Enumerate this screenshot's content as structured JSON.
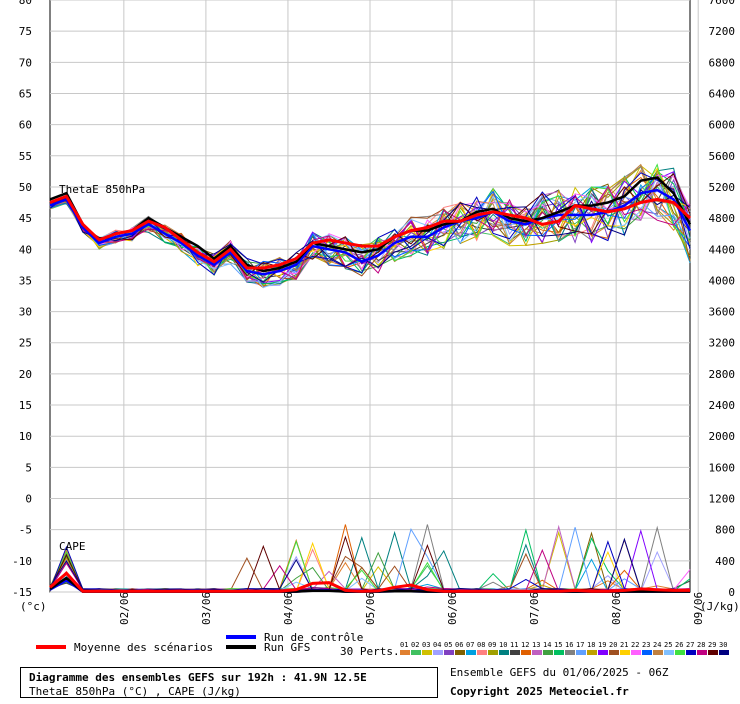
{
  "chart_data": {
    "type": "line",
    "title": "Diagramme des ensembles GEFS sur 192h : 41.9N 12.5E",
    "subtitle": "ThetaE 850hPa (°C) , CAPE (J/kg)",
    "run_info": "Ensemble GEFS du 01/06/2025 - 06Z",
    "copyright": "Copyright 2025 Meteociel.fr",
    "left_axis_unit": "(°c)",
    "right_axis_unit": "(J/kg)",
    "y_left_ticks": [
      "80",
      "75",
      "70",
      "65",
      "60",
      "55",
      "50",
      "45",
      "40",
      "35",
      "30",
      "25",
      "20",
      "15",
      "10",
      "5",
      "0",
      "-5",
      "-10",
      "-15"
    ],
    "y_right_ticks": [
      "7600",
      "7200",
      "6800",
      "6400",
      "6000",
      "5600",
      "5200",
      "4800",
      "4400",
      "4000",
      "3600",
      "3200",
      "2800",
      "2400",
      "2000",
      "1600",
      "1200",
      "800",
      "400",
      "0"
    ],
    "ylim_left": [
      -15,
      80
    ],
    "ylim_right": [
      0,
      7600
    ],
    "x_ticks": [
      "02/06",
      "03/06",
      "04/06",
      "05/06",
      "06/06",
      "07/06",
      "08/06",
      "09/06"
    ],
    "grid": true,
    "panel_labels": [
      "ThetaE 850hPa",
      "CAPE"
    ],
    "legend": {
      "mean": "Moyenne des scénarios",
      "control": "Run de contrôle",
      "gfs": "Run GFS",
      "perts": "30 Perts.",
      "pert_numbers": [
        "01",
        "02",
        "03",
        "04",
        "05",
        "06",
        "07",
        "08",
        "09",
        "10",
        "11",
        "12",
        "13",
        "14",
        "15",
        "16",
        "17",
        "18",
        "19",
        "20",
        "21",
        "22",
        "23",
        "24",
        "25",
        "26",
        "27",
        "28",
        "29",
        "30"
      ],
      "pert_colors": [
        "#e08030",
        "#40c060",
        "#d0c000",
        "#a0a0ff",
        "#8040c0",
        "#806000",
        "#00a0e0",
        "#ff8080",
        "#a0a000",
        "#008080",
        "#404040",
        "#e06000",
        "#c060c0",
        "#40a040",
        "#00c060",
        "#808080",
        "#60a0ff",
        "#c0a000",
        "#8000ff",
        "#a05020",
        "#ffd000",
        "#ff60ff",
        "#0060ff",
        "#c08040",
        "#80c0ff",
        "#40e040",
        "#0000c0",
        "#c00080",
        "#600000",
        "#000080"
      ]
    },
    "series": [
      {
        "name": "Moyenne des scénarios",
        "color": "#ff0000",
        "thetae": [
          47.5,
          48.5,
          44,
          41.5,
          42.5,
          43,
          44.5,
          43.5,
          41.5,
          39.5,
          38,
          40,
          37,
          37,
          37.5,
          38.5,
          41,
          41.5,
          41,
          40.5,
          40.5,
          42,
          43,
          43.5,
          44.5,
          44.5,
          45.5,
          46,
          45.5,
          45,
          44,
          44.5,
          47,
          46.5,
          46,
          46.5,
          47.5,
          48,
          47.5,
          45
        ],
        "cape": [
          60,
          240,
          10,
          10,
          10,
          10,
          10,
          10,
          10,
          10,
          10,
          10,
          10,
          10,
          10,
          30,
          110,
          120,
          20,
          10,
          15,
          60,
          90,
          30,
          10,
          10,
          10,
          10,
          10,
          10,
          10,
          10,
          20,
          10,
          10,
          20,
          40,
          30,
          20,
          20
        ]
      },
      {
        "name": "Run de contrôle",
        "color": "#0000ff",
        "thetae": [
          47,
          48,
          43.5,
          41,
          42,
          42.5,
          44,
          42.5,
          41,
          39,
          37.5,
          39.5,
          36.5,
          36,
          36.5,
          37.5,
          40.5,
          40,
          39.5,
          38,
          39,
          41,
          42,
          42,
          43.5,
          44.5,
          45,
          46,
          44.5,
          44,
          45,
          45.5,
          45.5,
          45.5,
          46,
          47,
          49,
          49.5,
          48,
          43
        ],
        "cape": [
          30,
          150,
          5,
          5,
          5,
          5,
          5,
          5,
          5,
          5,
          5,
          5,
          5,
          5,
          5,
          5,
          20,
          20,
          5,
          5,
          5,
          10,
          10,
          5,
          5,
          5,
          5,
          5,
          5,
          5,
          5,
          5,
          5,
          5,
          5,
          5,
          5,
          5,
          5,
          5
        ]
      },
      {
        "name": "Run GFS",
        "color": "#000000",
        "thetae": [
          48,
          49,
          44,
          41.5,
          42.5,
          43,
          45,
          43.5,
          42,
          40.5,
          38.5,
          40.5,
          37.5,
          36.5,
          37,
          38,
          41,
          40.5,
          40,
          39.5,
          40,
          42,
          43,
          43,
          44,
          44.5,
          46,
          46.5,
          45,
          44.5,
          45,
          46,
          47,
          47,
          47.5,
          48.5,
          51,
          51.5,
          49,
          44
        ],
        "cape": [
          40,
          180,
          5,
          5,
          5,
          5,
          5,
          5,
          5,
          5,
          5,
          5,
          5,
          5,
          5,
          5,
          15,
          15,
          5,
          5,
          5,
          10,
          10,
          5,
          5,
          5,
          5,
          5,
          5,
          5,
          5,
          5,
          5,
          5,
          5,
          5,
          5,
          5,
          5,
          5
        ]
      }
    ]
  }
}
